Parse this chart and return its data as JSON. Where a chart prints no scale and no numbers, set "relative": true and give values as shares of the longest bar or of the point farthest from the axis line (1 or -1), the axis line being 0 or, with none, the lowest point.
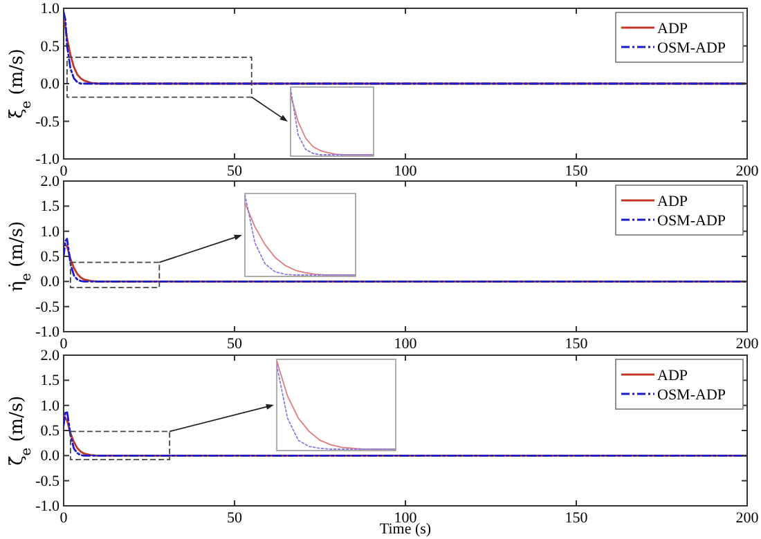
{
  "chart_data": [
    {
      "type": "line",
      "ylabel": "ξ̇$_{e}$ (m/s)",
      "xlim": [
        0,
        200
      ],
      "xticks": [
        0,
        50,
        100,
        150,
        200
      ],
      "ylim": [
        -1,
        1
      ],
      "yticks": [
        {
          "value": -1,
          "label": "-1.0"
        },
        {
          "value": -0.5,
          "label": "-0.5"
        },
        {
          "value": 0,
          "label": "0.0"
        },
        {
          "value": 0.5,
          "label": "0.5"
        },
        {
          "value": 1,
          "label": "1.0"
        }
      ],
      "legend": "top right",
      "grid": false,
      "series": [
        {
          "name": "ADP",
          "color": "#c0392b",
          "line_style": "solid",
          "x": [
            0,
            1,
            2,
            3,
            4,
            5,
            6,
            8,
            10,
            15,
            20,
            50,
            100,
            150,
            200
          ],
          "values": [
            0.9,
            0.6,
            0.38,
            0.22,
            0.12,
            0.07,
            0.04,
            0.01,
            0,
            0,
            0,
            0,
            0,
            0,
            0
          ]
        },
        {
          "name": "OSM-ADP",
          "color": "#1a1acc",
          "line_style": "dashed",
          "x": [
            0,
            0.5,
            1,
            2,
            3,
            4,
            5,
            6,
            8,
            10,
            20,
            50,
            100,
            150,
            200
          ],
          "values": [
            0.95,
            0.85,
            0.5,
            0.2,
            0.07,
            0.02,
            0,
            0,
            0,
            0,
            0,
            0,
            0,
            0,
            0
          ]
        }
      ]
    },
    {
      "type": "line",
      "ylabel": "η̇$_{e}$ (m/s)",
      "xlim": [
        0,
        200
      ],
      "xticks": [
        0,
        50,
        100,
        150,
        200
      ],
      "ylim": [
        -1,
        2
      ],
      "yticks": [
        {
          "value": -1,
          "label": "-1.0"
        },
        {
          "value": -0.5,
          "label": "-0.5"
        },
        {
          "value": 0,
          "label": "0.0"
        },
        {
          "value": 0.5,
          "label": "0.5"
        },
        {
          "value": 1,
          "label": "1.0"
        },
        {
          "value": 1.5,
          "label": "1.5"
        },
        {
          "value": 2,
          "label": "2.0"
        }
      ],
      "legend": "top right",
      "grid": false,
      "series": [
        {
          "name": "ADP",
          "color": "#c0392b",
          "line_style": "solid",
          "x": [
            0,
            1,
            2,
            3,
            4,
            5,
            6,
            8,
            10,
            15,
            20,
            50,
            100,
            150,
            200
          ],
          "values": [
            0.75,
            0.7,
            0.45,
            0.27,
            0.15,
            0.08,
            0.04,
            0.01,
            0,
            0,
            0,
            0,
            0,
            0,
            0
          ]
        },
        {
          "name": "OSM-ADP",
          "color": "#1a1acc",
          "line_style": "dashed",
          "x": [
            0,
            0.5,
            1,
            1.5,
            2,
            3,
            4,
            5,
            6,
            8,
            10,
            20,
            50,
            100,
            150,
            200
          ],
          "values": [
            0.5,
            0.8,
            0.85,
            0.6,
            0.35,
            0.12,
            0.04,
            0.01,
            0,
            0,
            0,
            0,
            0,
            0,
            0,
            0
          ]
        }
      ]
    },
    {
      "type": "line",
      "ylabel": "ζ̇$_{e}$ (m/s)",
      "xlabel": "Time (s)",
      "xlim": [
        0,
        200
      ],
      "xticks": [
        0,
        50,
        100,
        150,
        200
      ],
      "ylim": [
        -1,
        2
      ],
      "yticks": [
        {
          "value": -1,
          "label": "-1.0"
        },
        {
          "value": -0.5,
          "label": "-0.5"
        },
        {
          "value": 0,
          "label": "0.0"
        },
        {
          "value": 0.5,
          "label": "0.5"
        },
        {
          "value": 1,
          "label": "1.0"
        },
        {
          "value": 1.5,
          "label": "1.5"
        },
        {
          "value": 2,
          "label": "2.0"
        }
      ],
      "legend": "top right",
      "grid": false,
      "series": [
        {
          "name": "ADP",
          "color": "#c0392b",
          "line_style": "solid",
          "x": [
            0,
            1,
            2,
            3,
            4,
            5,
            6,
            8,
            10,
            15,
            20,
            50,
            100,
            150,
            200
          ],
          "values": [
            0.8,
            0.7,
            0.45,
            0.27,
            0.15,
            0.08,
            0.04,
            0.01,
            0,
            0,
            0,
            0,
            0,
            0,
            0
          ]
        },
        {
          "name": "OSM-ADP",
          "color": "#1a1acc",
          "line_style": "dashed",
          "x": [
            0,
            0.5,
            1,
            1.5,
            2,
            3,
            4,
            5,
            6,
            8,
            10,
            20,
            50,
            100,
            150,
            200
          ],
          "values": [
            0.6,
            0.85,
            0.88,
            0.65,
            0.4,
            0.14,
            0.05,
            0.01,
            0,
            0,
            0,
            0,
            0,
            0,
            0,
            0
          ]
        }
      ]
    },
    {
      "type": "line",
      "relative": true,
      "categories": [
        null,
        null,
        null,
        null,
        null,
        null,
        null,
        null,
        null,
        null,
        null,
        null
      ],
      "series": [
        {
          "color": "#e07b7b",
          "line_style": "solid",
          "values": [
            0.9,
            0.5,
            0.25,
            0.12,
            0.06,
            0.03,
            0.01,
            0,
            0,
            0,
            0,
            0
          ]
        },
        {
          "color": "#8a7be0",
          "line_style": "dotted",
          "values": [
            1,
            0.3,
            0.08,
            0.02,
            0,
            0,
            0,
            0,
            0,
            0,
            0,
            0
          ]
        }
      ]
    },
    {
      "type": "line",
      "relative": true,
      "categories": [
        null,
        null,
        null,
        null,
        null,
        null,
        null,
        null,
        null,
        null,
        null,
        null
      ],
      "series": [
        {
          "color": "#e07b7b",
          "line_style": "solid",
          "values": [
            0.9,
            0.6,
            0.38,
            0.22,
            0.12,
            0.06,
            0.03,
            0.01,
            0,
            0,
            0,
            0
          ]
        },
        {
          "color": "#8a7be0",
          "line_style": "dotted",
          "values": [
            1,
            0.4,
            0.14,
            0.04,
            0.01,
            0,
            0,
            0,
            0,
            0,
            0,
            0
          ]
        }
      ]
    },
    {
      "type": "line",
      "relative": true,
      "categories": [
        null,
        null,
        null,
        null,
        null,
        null,
        null,
        null,
        null,
        null,
        null,
        null
      ],
      "series": [
        {
          "color": "#e07b7b",
          "line_style": "solid",
          "values": [
            1,
            0.6,
            0.35,
            0.2,
            0.1,
            0.05,
            0.02,
            0.01,
            0,
            0,
            0,
            0
          ]
        },
        {
          "color": "#8a7be0",
          "line_style": "dotted",
          "values": [
            0.95,
            0.35,
            0.1,
            0.03,
            0.01,
            0,
            0,
            0,
            0,
            0,
            0,
            0
          ]
        }
      ]
    }
  ]
}
